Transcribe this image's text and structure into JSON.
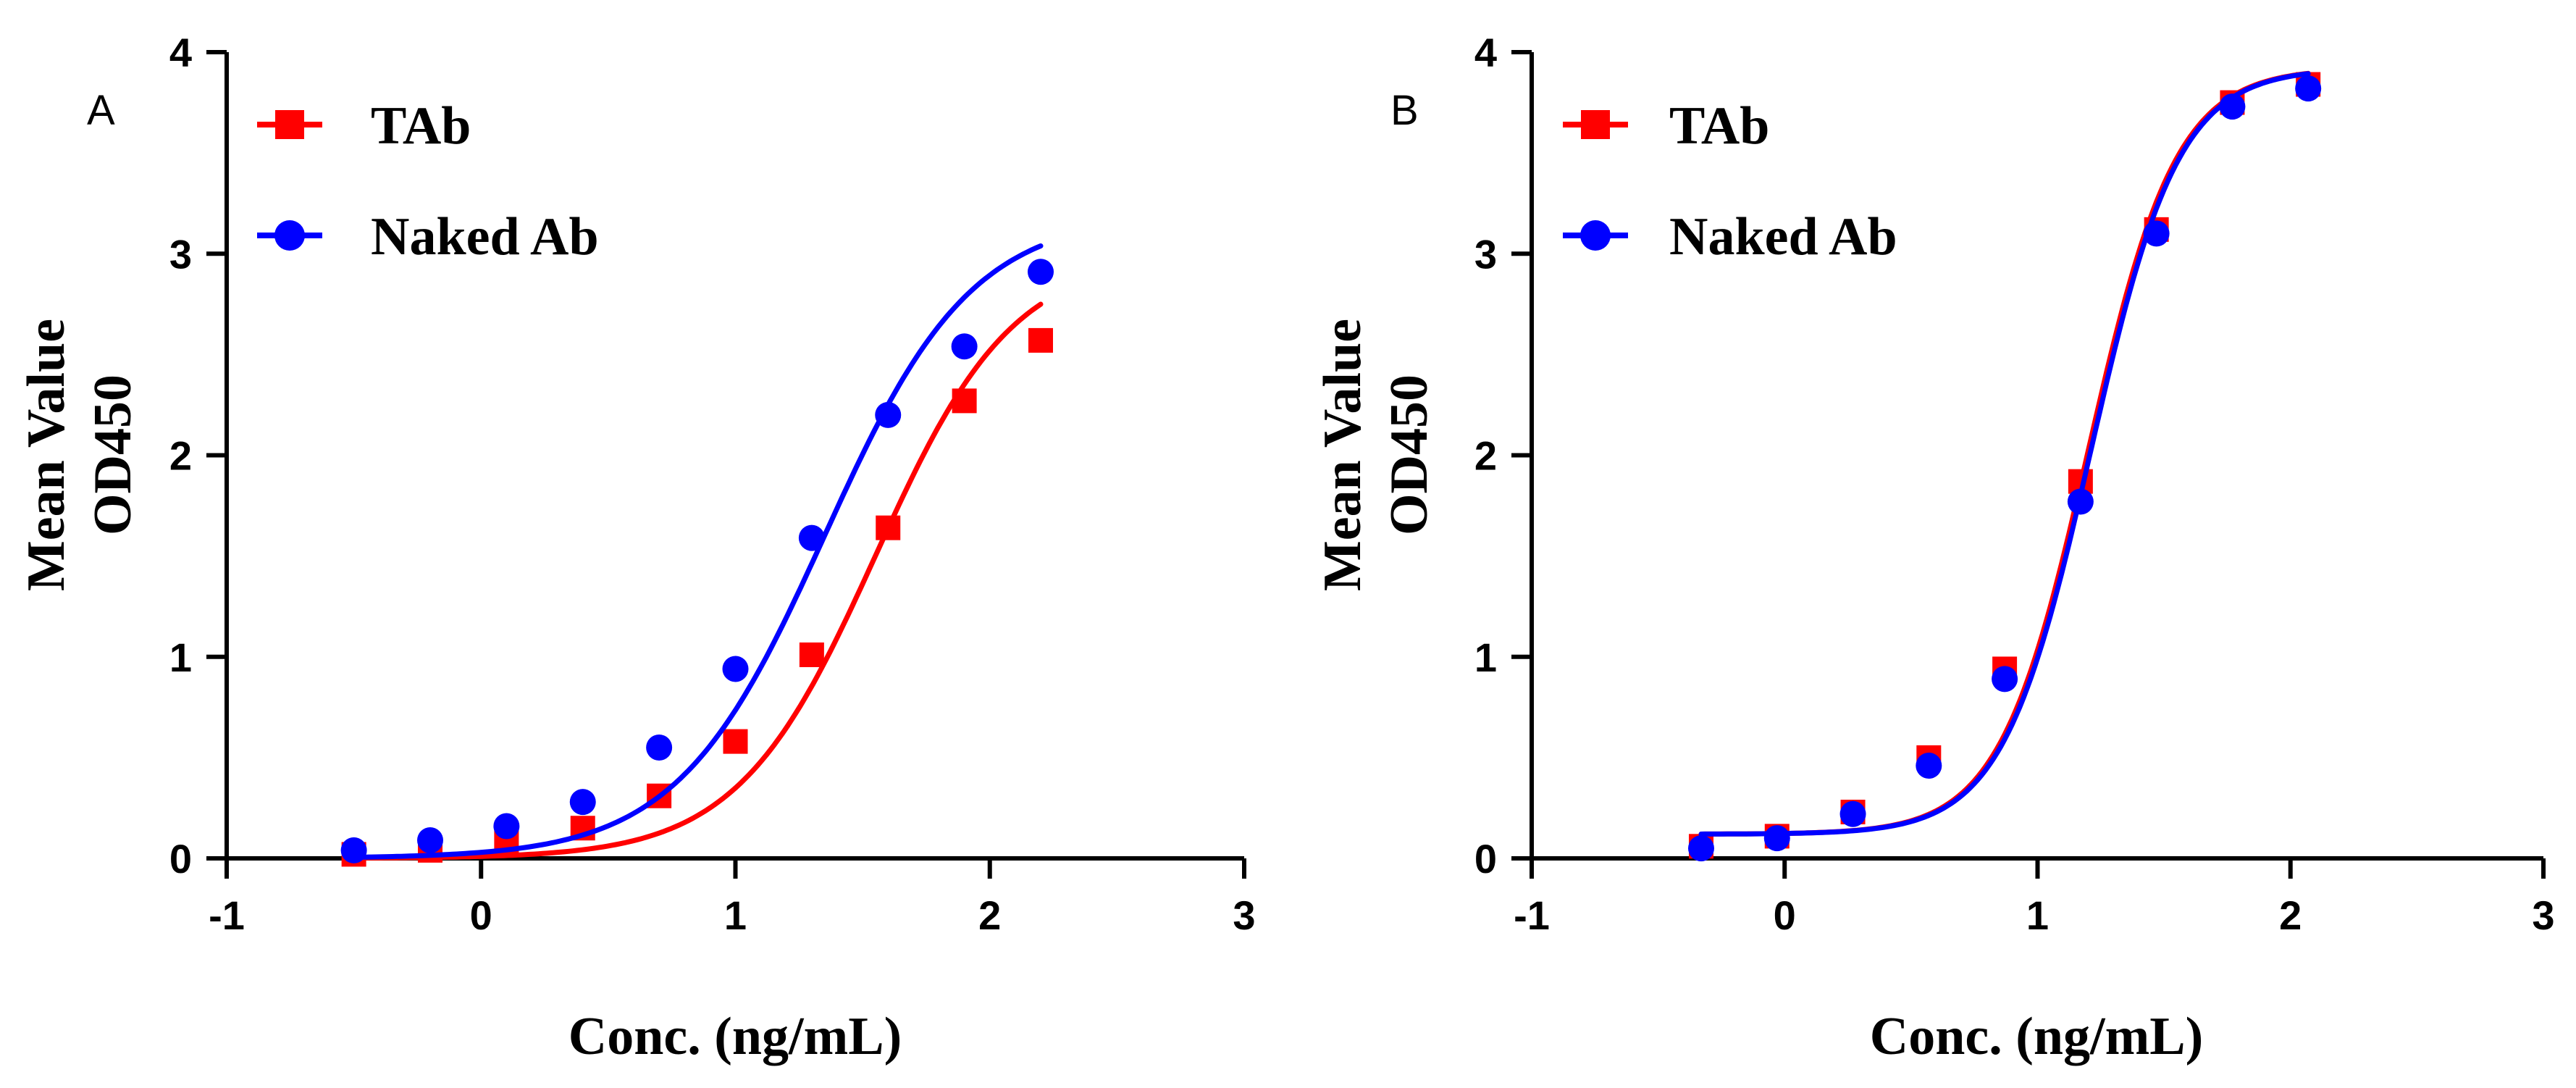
{
  "chart_data": [
    {
      "type": "line",
      "panel_label": "A",
      "xlabel": "Conc. (ng/mL)",
      "ylabel_line1": "Mean Value",
      "ylabel_line2": "OD450",
      "xlim": [
        -1,
        3
      ],
      "ylim": [
        0,
        4
      ],
      "xticks": [
        -1,
        0,
        1,
        2,
        3
      ],
      "yticks": [
        0,
        1,
        2,
        3,
        4
      ],
      "xtick_labels": [
        "-1",
        "0",
        "1",
        "2",
        "3"
      ],
      "ytick_labels": [
        "0",
        "1",
        "2",
        "3",
        "4"
      ],
      "grid": false,
      "legend_position": "top-left",
      "series": [
        {
          "name": "TAb",
          "color": "#ff0000",
          "marker": "square",
          "x": [
            -0.5,
            -0.2,
            0.1,
            0.4,
            0.7,
            1.0,
            1.3,
            1.6,
            1.9,
            2.2
          ],
          "y": [
            0.02,
            0.04,
            0.08,
            0.15,
            0.31,
            0.58,
            1.01,
            1.64,
            2.27,
            2.57
          ],
          "fit": {
            "bottom": 0.0,
            "top": 3.0,
            "logEC50": 1.55,
            "hill": 1.6
          }
        },
        {
          "name": "Naked Ab",
          "color": "#0000ff",
          "marker": "circle",
          "x": [
            -0.5,
            -0.2,
            0.1,
            0.4,
            0.7,
            1.0,
            1.3,
            1.6,
            1.9,
            2.2
          ],
          "y": [
            0.04,
            0.09,
            0.16,
            0.28,
            0.55,
            0.94,
            1.59,
            2.2,
            2.54,
            2.91
          ],
          "fit": {
            "bottom": 0.0,
            "top": 3.2,
            "logEC50": 1.35,
            "hill": 1.5
          }
        }
      ]
    },
    {
      "type": "line",
      "panel_label": "B",
      "xlabel": "Conc. (ng/mL)",
      "ylabel_line1": "Mean Value",
      "ylabel_line2": "OD450",
      "xlim": [
        -1,
        3
      ],
      "ylim": [
        0,
        4
      ],
      "xticks": [
        -1,
        0,
        1,
        2,
        3
      ],
      "yticks": [
        0,
        1,
        2,
        3,
        4
      ],
      "xtick_labels": [
        "-1",
        "0",
        "1",
        "2",
        "3"
      ],
      "ytick_labels": [
        "0",
        "1",
        "2",
        "3",
        "4"
      ],
      "grid": false,
      "legend_position": "top-left",
      "series": [
        {
          "name": "TAb",
          "color": "#ff0000",
          "marker": "square",
          "x": [
            -0.33,
            -0.03,
            0.27,
            0.57,
            0.87,
            1.17,
            1.47,
            1.77,
            2.07
          ],
          "y": [
            0.06,
            0.11,
            0.23,
            0.5,
            0.94,
            1.87,
            3.12,
            3.75,
            3.84
          ],
          "fit": {
            "bottom": 0.12,
            "top": 3.92,
            "logEC50": 1.2,
            "hill": 2.5
          }
        },
        {
          "name": "Naked Ab",
          "color": "#0000ff",
          "marker": "circle",
          "x": [
            -0.33,
            -0.03,
            0.27,
            0.57,
            0.87,
            1.17,
            1.47,
            1.77,
            2.07
          ],
          "y": [
            0.05,
            0.1,
            0.22,
            0.46,
            0.89,
            1.77,
            3.1,
            3.73,
            3.82
          ],
          "fit": {
            "bottom": 0.12,
            "top": 3.92,
            "logEC50": 1.21,
            "hill": 2.5
          }
        }
      ]
    }
  ]
}
